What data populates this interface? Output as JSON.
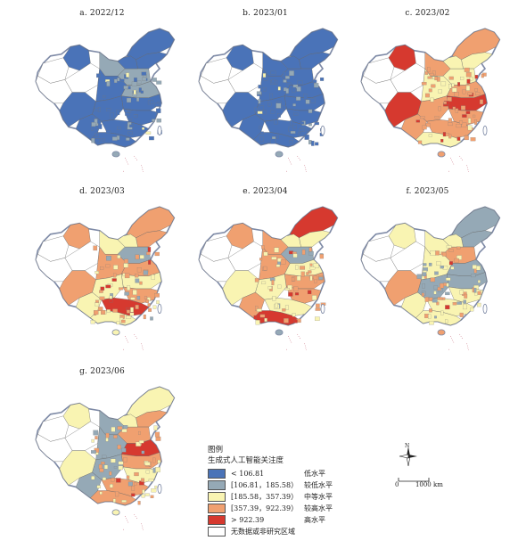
{
  "panels": [
    {
      "label": "a. 2022/12",
      "colors": [
        "#4a73b8",
        "#95a9b6",
        "#f9f4b2"
      ],
      "weights": [
        0.62,
        0.36,
        0.02
      ]
    },
    {
      "label": "b. 2023/01",
      "colors": [
        "#4a73b8",
        "#95a9b6",
        "#f9f4b2"
      ],
      "weights": [
        0.58,
        0.38,
        0.04
      ]
    },
    {
      "label": "c. 2023/02",
      "colors": [
        "#f9f4b2",
        "#f0a070",
        "#d6392f"
      ],
      "weights": [
        0.22,
        0.6,
        0.18
      ]
    },
    {
      "label": "d. 2023/03",
      "colors": [
        "#95a9b6",
        "#f9f4b2",
        "#f0a070",
        "#d6392f"
      ],
      "weights": [
        0.1,
        0.4,
        0.42,
        0.08
      ]
    },
    {
      "label": "e. 2023/04",
      "colors": [
        "#95a9b6",
        "#f9f4b2",
        "#f0a070",
        "#d6392f"
      ],
      "weights": [
        0.08,
        0.4,
        0.44,
        0.08
      ]
    },
    {
      "label": "f. 2023/05",
      "colors": [
        "#95a9b6",
        "#f9f4b2",
        "#f0a070",
        "#d6392f"
      ],
      "weights": [
        0.28,
        0.38,
        0.28,
        0.06
      ]
    },
    {
      "label": "g. 2023/06",
      "colors": [
        "#95a9b6",
        "#f9f4b2",
        "#f0a070",
        "#d6392f"
      ],
      "weights": [
        0.24,
        0.4,
        0.3,
        0.06
      ]
    }
  ],
  "legend": {
    "title": "图例",
    "subtitle": "生成式人工智能关注度",
    "items": [
      {
        "range": "< 106.81",
        "level": "低水平",
        "color": "#4a73b8"
      },
      {
        "range": "[106.81，185.58）",
        "level": "较低水平",
        "color": "#95a9b6"
      },
      {
        "range": "[185.58，357.39）",
        "level": "中等水平",
        "color": "#f9f4b2"
      },
      {
        "range": "[357.39，922.39）",
        "level": "较高水平",
        "color": "#f0a070"
      },
      {
        "range": "> 922.39",
        "level": "高水平",
        "color": "#d6392f"
      },
      {
        "range": "无数据或非研究区域",
        "level": "",
        "color": "#ffffff"
      }
    ]
  },
  "north_arrow": {
    "label": "N"
  },
  "scale": {
    "min_label": "0",
    "max_label": "1000 km"
  }
}
